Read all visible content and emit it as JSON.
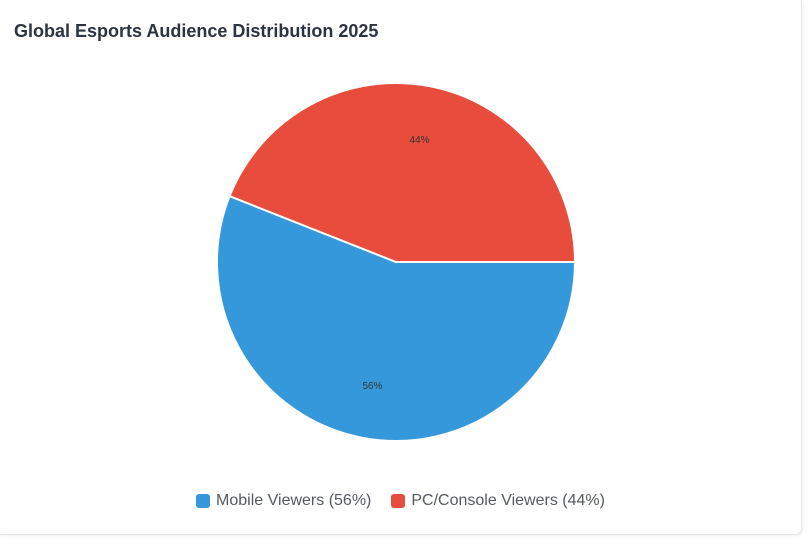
{
  "chart_data": {
    "type": "pie",
    "title": "Global Esports Audience Distribution 2025",
    "categories": [
      "Mobile Viewers",
      "PC/Console Viewers"
    ],
    "values": [
      56,
      44
    ],
    "slice_labels": [
      "56%",
      "44%"
    ],
    "legend_labels": [
      "Mobile Viewers (56%)",
      "PC/Console Viewers (44%)"
    ],
    "colors": [
      "#3598db",
      "#e74c3c"
    ],
    "legend_position": "bottom-center"
  }
}
